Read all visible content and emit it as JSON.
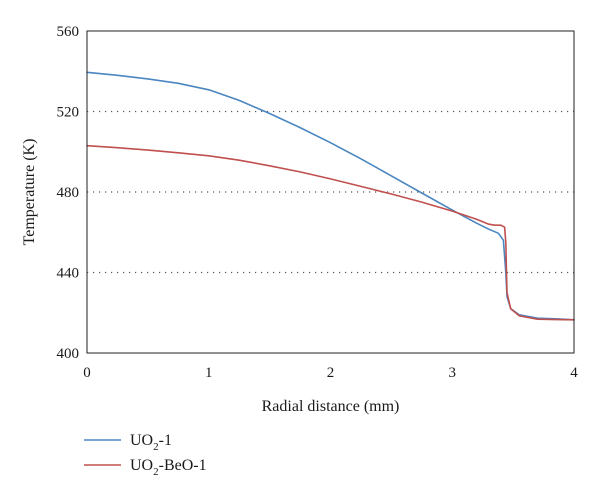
{
  "chart_data": {
    "type": "line",
    "title": "",
    "xlabel": "Radial distance (mm)",
    "ylabel": "Temperature (K)",
    "xlim": [
      0,
      4
    ],
    "ylim": [
      400,
      560
    ],
    "xticks": [
      0,
      1,
      2,
      3,
      4
    ],
    "yticks": [
      400,
      440,
      480,
      520,
      560
    ],
    "grid": "horizontal dotted at 440, 480, 520",
    "legend_position": "bottom-left",
    "series": [
      {
        "name": "UO2-1",
        "legend_main": "UO",
        "legend_sub": "2",
        "legend_suffix": "-1",
        "color": "#4a86c0",
        "points": [
          [
            0.0,
            539.5
          ],
          [
            0.25,
            538.0
          ],
          [
            0.5,
            536.2
          ],
          [
            0.75,
            534.0
          ],
          [
            1.0,
            530.8
          ],
          [
            1.25,
            525.5
          ],
          [
            1.5,
            519.0
          ],
          [
            1.75,
            512.0
          ],
          [
            2.0,
            504.5
          ],
          [
            2.25,
            496.5
          ],
          [
            2.5,
            488.0
          ],
          [
            2.75,
            479.5
          ],
          [
            3.0,
            471.0
          ],
          [
            3.2,
            464.5
          ],
          [
            3.3,
            461.5
          ],
          [
            3.38,
            459.5
          ],
          [
            3.42,
            456.0
          ],
          [
            3.44,
            440.0
          ],
          [
            3.45,
            428.0
          ],
          [
            3.48,
            422.0
          ],
          [
            3.55,
            419.0
          ],
          [
            3.7,
            417.3
          ],
          [
            3.85,
            417.0
          ],
          [
            4.0,
            416.5
          ]
        ]
      },
      {
        "name": "UO2-BeO-1",
        "legend_main": "UO",
        "legend_sub": "2",
        "legend_suffix": "-BeO-1",
        "color": "#c0504d",
        "points": [
          [
            0.0,
            503.0
          ],
          [
            0.25,
            502.0
          ],
          [
            0.5,
            500.8
          ],
          [
            0.75,
            499.5
          ],
          [
            1.0,
            498.0
          ],
          [
            1.25,
            495.8
          ],
          [
            1.5,
            493.0
          ],
          [
            1.75,
            490.0
          ],
          [
            2.0,
            486.5
          ],
          [
            2.25,
            482.8
          ],
          [
            2.5,
            479.0
          ],
          [
            2.75,
            475.0
          ],
          [
            3.0,
            470.5
          ],
          [
            3.2,
            466.5
          ],
          [
            3.3,
            464.0
          ],
          [
            3.35,
            463.5
          ],
          [
            3.4,
            463.5
          ],
          [
            3.43,
            462.5
          ],
          [
            3.44,
            455.0
          ],
          [
            3.45,
            430.0
          ],
          [
            3.48,
            422.0
          ],
          [
            3.55,
            418.5
          ],
          [
            3.7,
            416.8
          ],
          [
            3.85,
            416.6
          ],
          [
            4.0,
            416.5
          ]
        ]
      }
    ]
  }
}
